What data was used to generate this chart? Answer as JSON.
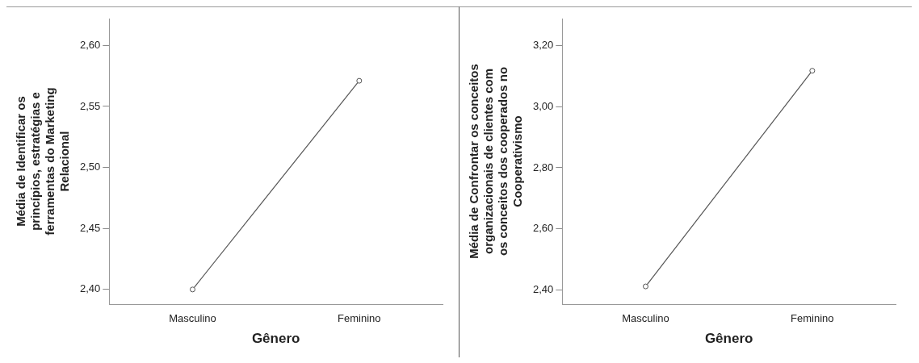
{
  "chart_data": [
    {
      "type": "line",
      "categories": [
        "Masculino",
        "Feminino"
      ],
      "values": [
        2.4,
        2.571
      ],
      "color": "#555555",
      "marker": "circle",
      "line_style": "solid",
      "grid": false,
      "xlabel": "Gênero",
      "ylabel": "Média de Identificar os princípios, estratégias e ferramentas do Marketing Relacional",
      "ylim": [
        2.388,
        2.622
      ],
      "yticks": [
        {
          "value": 2.4,
          "label": "2,40"
        },
        {
          "value": 2.45,
          "label": "2,45"
        },
        {
          "value": 2.5,
          "label": "2,50"
        },
        {
          "value": 2.55,
          "label": "2,55"
        },
        {
          "value": 2.6,
          "label": "2,60"
        }
      ]
    },
    {
      "type": "line",
      "categories": [
        "Masculino",
        "Feminino"
      ],
      "values": [
        2.411,
        3.118
      ],
      "color": "#555555",
      "marker": "circle",
      "line_style": "solid",
      "grid": false,
      "xlabel": "Gênero",
      "ylabel": "Média de Confrontar os conceitos organizacionais de clientes com os conceitos dos cooperados no Cooperativismo",
      "ylim": [
        2.353,
        3.289
      ],
      "yticks": [
        {
          "value": 2.4,
          "label": "2,40"
        },
        {
          "value": 2.6,
          "label": "2,60"
        },
        {
          "value": 2.8,
          "label": "2,80"
        },
        {
          "value": 3.0,
          "label": "3,00"
        },
        {
          "value": 3.2,
          "label": "3,20"
        }
      ]
    }
  ]
}
